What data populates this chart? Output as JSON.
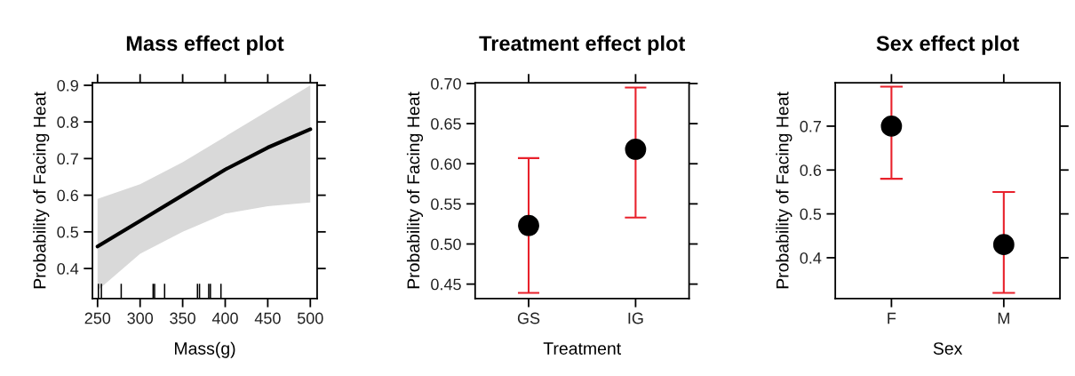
{
  "chart_data": [
    {
      "type": "line",
      "title": "Mass effect plot",
      "xlabel": "Mass(g)",
      "ylabel": "Probability of Facing Heat",
      "xlim": [
        244,
        508
      ],
      "xticks": [
        250,
        300,
        350,
        400,
        450,
        500
      ],
      "ylim": [
        0.318,
        0.907
      ],
      "yticks": [
        0.4,
        0.5,
        0.6,
        0.7,
        0.8,
        0.9
      ],
      "grid": false,
      "series": [
        {
          "type": "line",
          "color": "#000000",
          "x": [
            250,
            300,
            350,
            400,
            450,
            500
          ],
          "values": [
            0.46,
            0.53,
            0.6,
            0.67,
            0.73,
            0.78
          ],
          "lower": [
            0.34,
            0.44,
            0.5,
            0.55,
            0.57,
            0.58
          ],
          "upper": [
            0.59,
            0.63,
            0.69,
            0.76,
            0.83,
            0.9
          ]
        },
        {
          "type": "bar",
          "color": "#000000",
          "x": [
            251,
            254.5,
            277.8,
            315.3,
            317,
            328.8,
            367.4,
            369.8,
            380.6,
            382.6,
            395
          ],
          "base": [
            0.318,
            0.318,
            0.318,
            0.318,
            0.318,
            0.318,
            0.318,
            0.318,
            0.318,
            0.318,
            0.318
          ],
          "values": [
            0.04,
            0.04,
            0.04,
            0.04,
            0.04,
            0.04,
            0.04,
            0.04,
            0.04,
            0.04,
            0.04
          ]
        }
      ]
    },
    {
      "type": "scatter",
      "title": "Treatment effect plot",
      "xlabel": "Treatment",
      "ylabel": "Probability of Facing Heat",
      "categories": [
        "GS",
        "IG"
      ],
      "ylim": [
        0.432,
        0.701
      ],
      "yticks": [
        {
          "value": 0.45,
          "label": "0.45"
        },
        {
          "value": 0.5,
          "label": "0.50"
        },
        {
          "value": 0.55,
          "label": "0.55"
        },
        {
          "value": 0.6,
          "label": "0.60"
        },
        {
          "value": 0.65,
          "label": "0.65"
        },
        {
          "value": 0.7,
          "label": "0.70"
        }
      ],
      "grid": false,
      "marker": "circle",
      "series": [
        {
          "color": "#000000",
          "values": [
            0.523,
            0.618
          ],
          "errors": [
            [
              0.439,
              0.607
            ],
            [
              0.533,
              0.695
            ]
          ]
        }
      ]
    },
    {
      "type": "scatter",
      "title": "Sex effect plot",
      "xlabel": "Sex",
      "ylabel": "Probability of Facing Heat",
      "categories": [
        "F",
        "M"
      ],
      "ylim": [
        0.307,
        0.799
      ],
      "yticks": [
        0.4,
        0.5,
        0.6,
        0.7
      ],
      "grid": false,
      "marker": "circle",
      "series": [
        {
          "color": "#000000",
          "values": [
            0.7,
            0.43
          ],
          "errors": [
            [
              0.58,
              0.79
            ],
            [
              0.32,
              0.55
            ]
          ]
        }
      ]
    }
  ]
}
